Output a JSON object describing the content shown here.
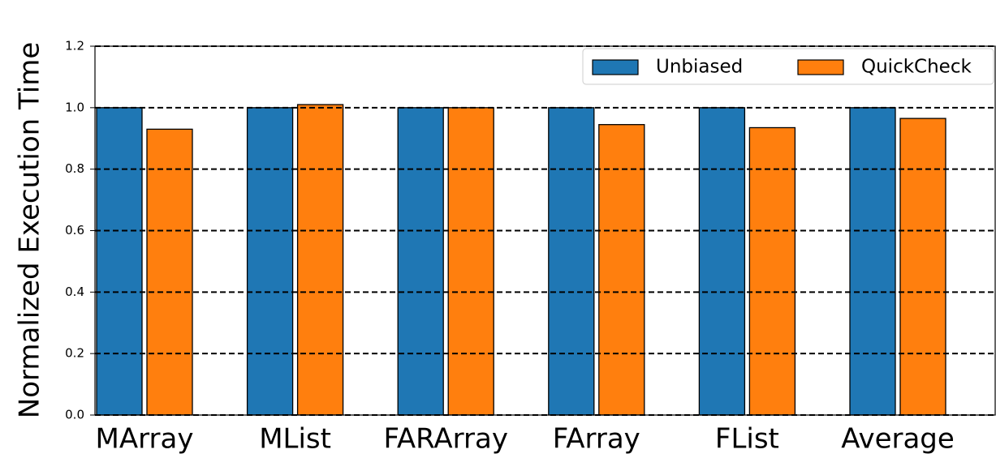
{
  "chart_data": {
    "type": "bar",
    "ylabel": "Normalized Execution Time",
    "categories": [
      "MArray",
      "MList",
      "FARArray",
      "FArray",
      "FList",
      "Average"
    ],
    "series": [
      {
        "name": "Unbiased",
        "color": "#1f77b4",
        "values": [
          1.0,
          1.0,
          1.0,
          1.0,
          1.0,
          1.0
        ]
      },
      {
        "name": "QuickCheck",
        "color": "#ff7f0e",
        "values": [
          0.93,
          1.01,
          1.0,
          0.945,
          0.935,
          0.965
        ]
      }
    ],
    "ylim": [
      0,
      1.2
    ],
    "yticks": [
      {
        "value": 0,
        "label": "0.0"
      },
      {
        "value": 0.2,
        "label": "0.2"
      },
      {
        "value": 0.4,
        "label": "0.4"
      },
      {
        "value": 0.6,
        "label": "0.6"
      },
      {
        "value": 0.8,
        "label": "0.8"
      },
      {
        "value": 1.0,
        "label": "1.0"
      },
      {
        "value": 1.2,
        "label": "1.2"
      }
    ],
    "grid": true,
    "legend": "upper right"
  }
}
